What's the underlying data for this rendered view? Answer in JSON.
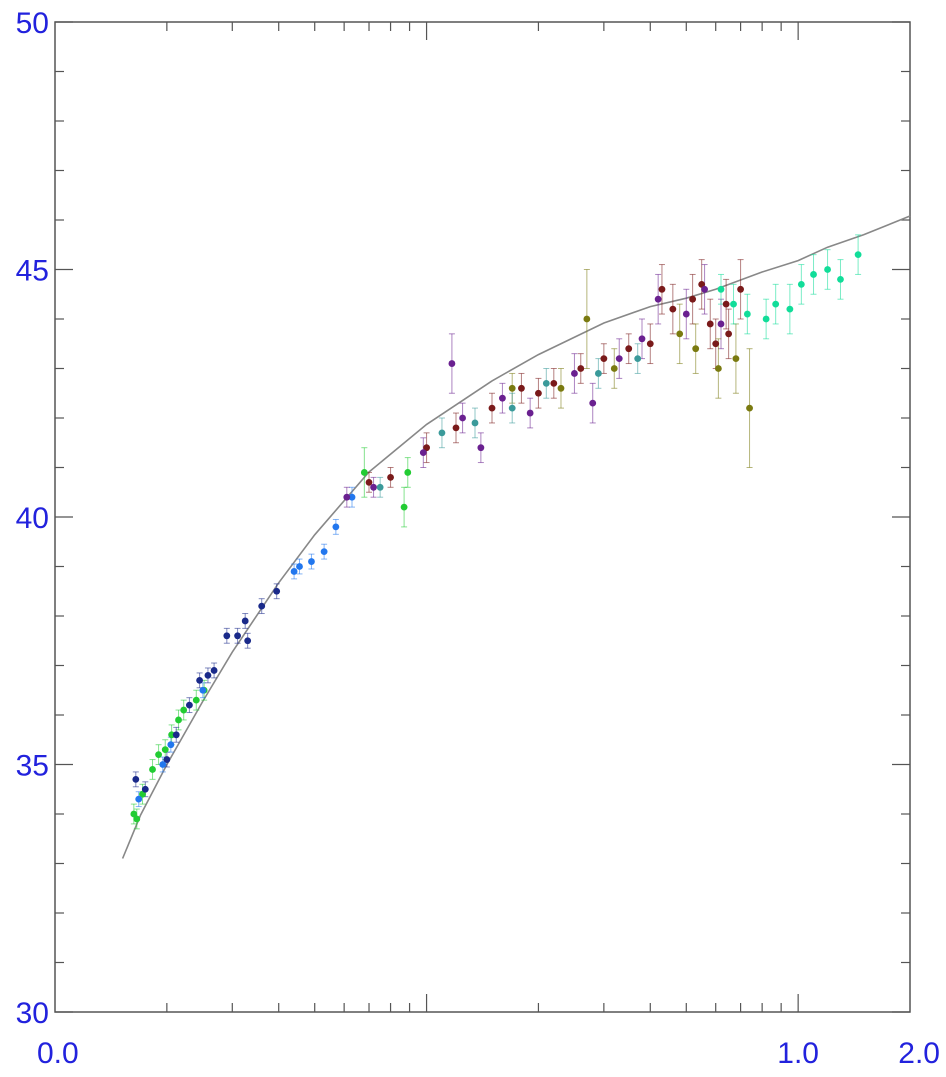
{
  "chart_data": {
    "type": "scatter",
    "title": "",
    "xlabel": "",
    "ylabel": "",
    "x_scale": "log",
    "xlim": [
      0.01,
      2.0
    ],
    "ylim": [
      30,
      50
    ],
    "grid": false,
    "x_tick_labels": [
      {
        "value": 0.01,
        "label": "0.0"
      },
      {
        "value": 1.0,
        "label": "1.0"
      },
      {
        "value": 2.0,
        "label": "2.0"
      }
    ],
    "y_tick_labels": [
      {
        "value": 30,
        "label": "30"
      },
      {
        "value": 35,
        "label": "35"
      },
      {
        "value": 40,
        "label": "40"
      },
      {
        "value": 45,
        "label": "45"
      },
      {
        "value": 50,
        "label": "50"
      }
    ],
    "colors": {
      "tick_label": "#2222dd",
      "axis": "#555555",
      "curve": "#888888"
    },
    "fit_curve": {
      "x": [
        0.0152,
        0.017,
        0.02,
        0.025,
        0.03,
        0.04,
        0.05,
        0.07,
        0.1,
        0.15,
        0.2,
        0.3,
        0.4,
        0.5,
        0.6,
        0.8,
        1.0,
        1.2,
        1.5,
        2.0
      ],
      "y": [
        33.1,
        33.98,
        35.0,
        36.28,
        37.27,
        38.67,
        39.64,
        40.91,
        41.87,
        42.75,
        43.28,
        43.92,
        44.25,
        44.42,
        44.6,
        44.95,
        45.18,
        45.45,
        45.7,
        46.08
      ]
    },
    "series": [
      {
        "color": "#22cc33",
        "points": [
          {
            "x": 0.0163,
            "y": 34.0,
            "err": 0.2
          },
          {
            "x": 0.0166,
            "y": 33.9,
            "err": 0.2
          },
          {
            "x": 0.0172,
            "y": 34.4,
            "err": 0.2
          },
          {
            "x": 0.0183,
            "y": 34.9,
            "err": 0.2
          },
          {
            "x": 0.019,
            "y": 35.2,
            "err": 0.2
          },
          {
            "x": 0.0198,
            "y": 35.3,
            "err": 0.2
          },
          {
            "x": 0.0206,
            "y": 35.6,
            "err": 0.2
          },
          {
            "x": 0.0215,
            "y": 35.9,
            "err": 0.2
          },
          {
            "x": 0.0222,
            "y": 36.1,
            "err": 0.2
          },
          {
            "x": 0.024,
            "y": 36.3,
            "err": 0.2
          },
          {
            "x": 0.0252,
            "y": 36.5,
            "err": 0.2
          },
          {
            "x": 0.068,
            "y": 40.9,
            "err": 0.5
          },
          {
            "x": 0.087,
            "y": 40.2,
            "err": 0.4
          },
          {
            "x": 0.089,
            "y": 40.9,
            "err": 0.3
          }
        ]
      },
      {
        "color": "#1a2a8a",
        "points": [
          {
            "x": 0.0165,
            "y": 34.7,
            "err": 0.15
          },
          {
            "x": 0.0175,
            "y": 34.5,
            "err": 0.15
          },
          {
            "x": 0.02,
            "y": 35.1,
            "err": 0.15
          },
          {
            "x": 0.0212,
            "y": 35.6,
            "err": 0.15
          },
          {
            "x": 0.023,
            "y": 36.2,
            "err": 0.15
          },
          {
            "x": 0.0245,
            "y": 36.7,
            "err": 0.15
          },
          {
            "x": 0.0258,
            "y": 36.8,
            "err": 0.15
          },
          {
            "x": 0.0268,
            "y": 36.9,
            "err": 0.15
          },
          {
            "x": 0.029,
            "y": 37.6,
            "err": 0.15
          },
          {
            "x": 0.031,
            "y": 37.6,
            "err": 0.15
          },
          {
            "x": 0.0325,
            "y": 37.9,
            "err": 0.15
          },
          {
            "x": 0.033,
            "y": 37.5,
            "err": 0.15
          },
          {
            "x": 0.036,
            "y": 38.2,
            "err": 0.15
          },
          {
            "x": 0.0395,
            "y": 38.5,
            "err": 0.15
          }
        ]
      },
      {
        "color": "#2277ee",
        "points": [
          {
            "x": 0.0168,
            "y": 34.3,
            "err": 0.15
          },
          {
            "x": 0.0195,
            "y": 35.0,
            "err": 0.15
          },
          {
            "x": 0.0205,
            "y": 35.4,
            "err": 0.15
          },
          {
            "x": 0.025,
            "y": 36.5,
            "err": 0.15
          },
          {
            "x": 0.044,
            "y": 38.9,
            "err": 0.15
          },
          {
            "x": 0.0455,
            "y": 39.0,
            "err": 0.15
          },
          {
            "x": 0.049,
            "y": 39.1,
            "err": 0.15
          },
          {
            "x": 0.053,
            "y": 39.3,
            "err": 0.15
          },
          {
            "x": 0.057,
            "y": 39.8,
            "err": 0.15
          },
          {
            "x": 0.063,
            "y": 40.4,
            "err": 0.2
          }
        ]
      },
      {
        "color": "#7a1a1a",
        "points": [
          {
            "x": 0.07,
            "y": 40.7,
            "err": 0.2
          },
          {
            "x": 0.08,
            "y": 40.8,
            "err": 0.2
          },
          {
            "x": 0.1,
            "y": 41.4,
            "err": 0.3
          },
          {
            "x": 0.12,
            "y": 41.8,
            "err": 0.3
          },
          {
            "x": 0.15,
            "y": 42.2,
            "err": 0.3
          },
          {
            "x": 0.18,
            "y": 42.6,
            "err": 0.3
          },
          {
            "x": 0.2,
            "y": 42.5,
            "err": 0.3
          },
          {
            "x": 0.22,
            "y": 42.7,
            "err": 0.3
          },
          {
            "x": 0.26,
            "y": 43.0,
            "err": 0.3
          },
          {
            "x": 0.3,
            "y": 43.2,
            "err": 0.3
          },
          {
            "x": 0.35,
            "y": 43.4,
            "err": 0.3
          },
          {
            "x": 0.4,
            "y": 43.5,
            "err": 0.4
          },
          {
            "x": 0.43,
            "y": 44.6,
            "err": 0.5
          },
          {
            "x": 0.46,
            "y": 44.2,
            "err": 0.5
          },
          {
            "x": 0.52,
            "y": 44.4,
            "err": 0.5
          },
          {
            "x": 0.55,
            "y": 44.7,
            "err": 0.5
          },
          {
            "x": 0.58,
            "y": 43.9,
            "err": 0.5
          },
          {
            "x": 0.6,
            "y": 43.5,
            "err": 0.5
          },
          {
            "x": 0.64,
            "y": 44.3,
            "err": 0.5
          },
          {
            "x": 0.65,
            "y": 43.7,
            "err": 0.5
          },
          {
            "x": 0.7,
            "y": 44.6,
            "err": 0.6
          }
        ]
      },
      {
        "color": "#6a2090",
        "points": [
          {
            "x": 0.061,
            "y": 40.4,
            "err": 0.2
          },
          {
            "x": 0.072,
            "y": 40.6,
            "err": 0.2
          },
          {
            "x": 0.098,
            "y": 41.3,
            "err": 0.3
          },
          {
            "x": 0.117,
            "y": 43.1,
            "err": 0.6
          },
          {
            "x": 0.125,
            "y": 42.0,
            "err": 0.3
          },
          {
            "x": 0.14,
            "y": 41.4,
            "err": 0.3
          },
          {
            "x": 0.16,
            "y": 42.4,
            "err": 0.3
          },
          {
            "x": 0.19,
            "y": 42.1,
            "err": 0.3
          },
          {
            "x": 0.25,
            "y": 42.9,
            "err": 0.4
          },
          {
            "x": 0.28,
            "y": 42.3,
            "err": 0.4
          },
          {
            "x": 0.33,
            "y": 43.2,
            "err": 0.4
          },
          {
            "x": 0.38,
            "y": 43.6,
            "err": 0.4
          },
          {
            "x": 0.42,
            "y": 44.4,
            "err": 0.5
          },
          {
            "x": 0.5,
            "y": 44.1,
            "err": 0.5
          },
          {
            "x": 0.56,
            "y": 44.6,
            "err": 0.5
          },
          {
            "x": 0.62,
            "y": 43.9,
            "err": 0.5
          }
        ]
      },
      {
        "color": "#7a7a10",
        "points": [
          {
            "x": 0.17,
            "y": 42.6,
            "err": 0.3
          },
          {
            "x": 0.23,
            "y": 42.6,
            "err": 0.4
          },
          {
            "x": 0.27,
            "y": 44.0,
            "err": 1.0
          },
          {
            "x": 0.32,
            "y": 43.0,
            "err": 0.4
          },
          {
            "x": 0.48,
            "y": 43.7,
            "err": 0.6
          },
          {
            "x": 0.53,
            "y": 43.4,
            "err": 0.5
          },
          {
            "x": 0.61,
            "y": 43.0,
            "err": 0.6
          },
          {
            "x": 0.68,
            "y": 43.2,
            "err": 0.7
          },
          {
            "x": 0.74,
            "y": 42.2,
            "err": 1.2
          }
        ]
      },
      {
        "color": "#3a9a9a",
        "points": [
          {
            "x": 0.075,
            "y": 40.6,
            "err": 0.2
          },
          {
            "x": 0.11,
            "y": 41.7,
            "err": 0.3
          },
          {
            "x": 0.135,
            "y": 41.9,
            "err": 0.3
          },
          {
            "x": 0.17,
            "y": 42.2,
            "err": 0.3
          },
          {
            "x": 0.21,
            "y": 42.7,
            "err": 0.3
          },
          {
            "x": 0.29,
            "y": 42.9,
            "err": 0.3
          },
          {
            "x": 0.37,
            "y": 43.2,
            "err": 0.3
          }
        ]
      },
      {
        "color": "#11dd99",
        "points": [
          {
            "x": 0.62,
            "y": 44.6,
            "err": 0.3
          },
          {
            "x": 0.67,
            "y": 44.3,
            "err": 0.4
          },
          {
            "x": 0.73,
            "y": 44.1,
            "err": 0.4
          },
          {
            "x": 0.82,
            "y": 44.0,
            "err": 0.4
          },
          {
            "x": 0.87,
            "y": 44.3,
            "err": 0.4
          },
          {
            "x": 0.95,
            "y": 44.2,
            "err": 0.5
          },
          {
            "x": 1.02,
            "y": 44.7,
            "err": 0.4
          },
          {
            "x": 1.1,
            "y": 44.9,
            "err": 0.4
          },
          {
            "x": 1.2,
            "y": 45.0,
            "err": 0.4
          },
          {
            "x": 1.3,
            "y": 44.8,
            "err": 0.4
          },
          {
            "x": 1.45,
            "y": 45.3,
            "err": 0.4
          }
        ]
      }
    ]
  }
}
